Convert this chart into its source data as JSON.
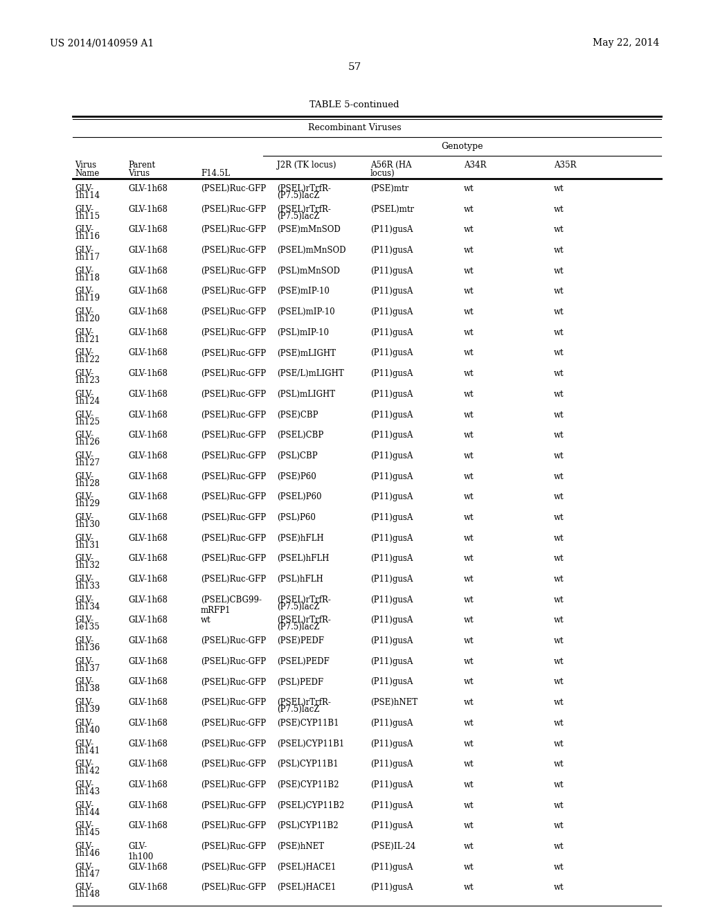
{
  "header_left": "US 2014/0140959 A1",
  "header_right": "May 22, 2014",
  "page_number": "57",
  "table_title": "TABLE 5-continued",
  "section_header": "Recombinant Viruses",
  "genotype_header": "Genotype",
  "col_headers_line1": [
    "Virus",
    "Parent",
    "",
    "J2R (TK locus)",
    "A56R (HA",
    "A34R",
    "A35R"
  ],
  "col_headers_line2": [
    "Name",
    "Virus",
    "F14.5L",
    "",
    "locus)",
    "",
    ""
  ],
  "rows": [
    [
      "GLV-",
      "1h114",
      "GLV-1h68",
      "(PSEL)Ruc-GFP",
      "(PSEL)rTrfR-",
      "(P7.5)lacZ",
      "(PSE)mtr",
      "wt",
      "wt"
    ],
    [
      "GLV-",
      "1h115",
      "GLV-1h68",
      "(PSEL)Ruc-GFP",
      "(PSEL)rTrfR-",
      "(P7.5)lacZ",
      "(PSEL)mtr",
      "wt",
      "wt"
    ],
    [
      "GLV-",
      "1h116",
      "GLV-1h68",
      "(PSEL)Ruc-GFP",
      "(PSE)mMnSOD",
      "",
      "(P11)gusA",
      "wt",
      "wt"
    ],
    [
      "GLV-",
      "1h117",
      "GLV-1h68",
      "(PSEL)Ruc-GFP",
      "(PSEL)mMnSOD",
      "",
      "(P11)gusA",
      "wt",
      "wt"
    ],
    [
      "GLV-",
      "1h118",
      "GLV-1h68",
      "(PSEL)Ruc-GFP",
      "(PSL)mMnSOD",
      "",
      "(P11)gusA",
      "wt",
      "wt"
    ],
    [
      "GLV-",
      "1h119",
      "GLV-1h68",
      "(PSEL)Ruc-GFP",
      "(PSE)mIP-10",
      "",
      "(P11)gusA",
      "wt",
      "wt"
    ],
    [
      "GLV-",
      "1h120",
      "GLV-1h68",
      "(PSEL)Ruc-GFP",
      "(PSEL)mIP-10",
      "",
      "(P11)gusA",
      "wt",
      "wt"
    ],
    [
      "GLV-",
      "1h121",
      "GLV-1h68",
      "(PSEL)Ruc-GFP",
      "(PSL)mIP-10",
      "",
      "(P11)gusA",
      "wt",
      "wt"
    ],
    [
      "GLV-",
      "1h122",
      "GLV-1h68",
      "(PSEL)Ruc-GFP",
      "(PSE)mLIGHT",
      "",
      "(P11)gusA",
      "wt",
      "wt"
    ],
    [
      "GLV-",
      "1h123",
      "GLV-1h68",
      "(PSEL)Ruc-GFP",
      "(PSE/L)mLIGHT",
      "",
      "(P11)gusA",
      "wt",
      "wt"
    ],
    [
      "GLV-",
      "1h124",
      "GLV-1h68",
      "(PSEL)Ruc-GFP",
      "(PSL)mLIGHT",
      "",
      "(P11)gusA",
      "wt",
      "wt"
    ],
    [
      "GLV-",
      "1h125",
      "GLV-1h68",
      "(PSEL)Ruc-GFP",
      "(PSE)CBP",
      "",
      "(P11)gusA",
      "wt",
      "wt"
    ],
    [
      "GLV-",
      "1h126",
      "GLV-1h68",
      "(PSEL)Ruc-GFP",
      "(PSEL)CBP",
      "",
      "(P11)gusA",
      "wt",
      "wt"
    ],
    [
      "GLV-",
      "1h127",
      "GLV-1h68",
      "(PSEL)Ruc-GFP",
      "(PSL)CBP",
      "",
      "(P11)gusA",
      "wt",
      "wt"
    ],
    [
      "GLV-",
      "1h128",
      "GLV-1h68",
      "(PSEL)Ruc-GFP",
      "(PSE)P60",
      "",
      "(P11)gusA",
      "wt",
      "wt"
    ],
    [
      "GLV-",
      "1h129",
      "GLV-1h68",
      "(PSEL)Ruc-GFP",
      "(PSEL)P60",
      "",
      "(P11)gusA",
      "wt",
      "wt"
    ],
    [
      "GLV-",
      "1h130",
      "GLV-1h68",
      "(PSEL)Ruc-GFP",
      "(PSL)P60",
      "",
      "(P11)gusA",
      "wt",
      "wt"
    ],
    [
      "GLV-",
      "1h131",
      "GLV-1h68",
      "(PSEL)Ruc-GFP",
      "(PSE)hFLH",
      "",
      "(P11)gusA",
      "wt",
      "wt"
    ],
    [
      "GLV-",
      "1h132",
      "GLV-1h68",
      "(PSEL)Ruc-GFP",
      "(PSEL)hFLH",
      "",
      "(P11)gusA",
      "wt",
      "wt"
    ],
    [
      "GLV-",
      "1h133",
      "GLV-1h68",
      "(PSEL)Ruc-GFP",
      "(PSL)hFLH",
      "",
      "(P11)gusA",
      "wt",
      "wt"
    ],
    [
      "GLV-",
      "1h134",
      "GLV-1h68",
      "(PSEL)CBG99-",
      "mRFP1",
      "(PSEL)rTrfR-",
      "(P7.5)lacZ",
      "(P11)gusA",
      "wt",
      "wt"
    ],
    [
      "GLV-",
      "1e135",
      "GLV-1h68",
      "wt",
      "(PSEL)rTrfR-",
      "(P7.5)lacZ",
      "(P11)gusA",
      "wt",
      "wt"
    ],
    [
      "GLV-",
      "1h136",
      "GLV-1h68",
      "(PSEL)Ruc-GFP",
      "(PSE)PEDF",
      "",
      "(P11)gusA",
      "wt",
      "wt"
    ],
    [
      "GLV-",
      "1h137",
      "GLV-1h68",
      "(PSEL)Ruc-GFP",
      "(PSEL)PEDF",
      "",
      "(P11)gusA",
      "wt",
      "wt"
    ],
    [
      "GLV-",
      "1h138",
      "GLV-1h68",
      "(PSEL)Ruc-GFP",
      "(PSL)PEDF",
      "",
      "(P11)gusA",
      "wt",
      "wt"
    ],
    [
      "GLV-",
      "1h139",
      "GLV-1h68",
      "(PSEL)Ruc-GFP",
      "(PSEL)rTrfR-",
      "(P7.5)lacZ",
      "(PSE)hNET",
      "wt",
      "wt"
    ],
    [
      "GLV-",
      "1h140",
      "GLV-1h68",
      "(PSEL)Ruc-GFP",
      "(PSE)CYP11B1",
      "",
      "(P11)gusA",
      "wt",
      "wt"
    ],
    [
      "GLV-",
      "1h141",
      "GLV-1h68",
      "(PSEL)Ruc-GFP",
      "(PSEL)CYP11B1",
      "",
      "(P11)gusA",
      "wt",
      "wt"
    ],
    [
      "GLV-",
      "1h142",
      "GLV-1h68",
      "(PSEL)Ruc-GFP",
      "(PSL)CYP11B1",
      "",
      "(P11)gusA",
      "wt",
      "wt"
    ],
    [
      "GLV-",
      "1h143",
      "GLV-1h68",
      "(PSEL)Ruc-GFP",
      "(PSE)CYP11B2",
      "",
      "(P11)gusA",
      "wt",
      "wt"
    ],
    [
      "GLV-",
      "1h144",
      "GLV-1h68",
      "(PSEL)Ruc-GFP",
      "(PSEL)CYP11B2",
      "",
      "(P11)gusA",
      "wt",
      "wt"
    ],
    [
      "GLV-",
      "1h145",
      "GLV-1h68",
      "(PSEL)Ruc-GFP",
      "(PSL)CYP11B2",
      "",
      "(P11)gusA",
      "wt",
      "wt"
    ],
    [
      "GLV-",
      "1h146",
      "GLV-",
      "1h100",
      "(PSEL)Ruc-GFP",
      "(PSE)hNET",
      "",
      "(PSE)IL-24",
      "wt",
      "wt"
    ],
    [
      "GLV-",
      "1h147",
      "GLV-1h68",
      "(PSEL)Ruc-GFP",
      "(PSEL)HACE1",
      "",
      "(P11)gusA",
      "wt",
      "wt"
    ],
    [
      "GLV-",
      "1h148",
      "GLV-1h68",
      "(PSEL)Ruc-GFP",
      "(PSEL)HACE1",
      "",
      "(P11)gusA",
      "wt",
      "wt"
    ]
  ],
  "bg_color": "#ffffff",
  "text_color": "#000000"
}
